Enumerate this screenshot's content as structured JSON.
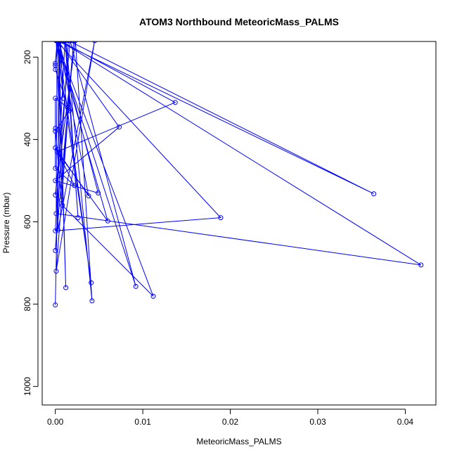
{
  "chart_data": {
    "type": "line",
    "title": "ATOM3 Northbound MeteoricMass_PALMS",
    "xlabel": "MeteoricMass_PALMS",
    "ylabel": "Pressure (mbar)",
    "xlim": [
      -0.0015,
      0.0435
    ],
    "ylim": [
      1045,
      162
    ],
    "y_reversed": true,
    "x_ticks": [
      0.0,
      0.01,
      0.02,
      0.03,
      0.04
    ],
    "x_tick_labels": [
      "0.00",
      "0.01",
      "0.02",
      "0.03",
      "0.04"
    ],
    "y_ticks": [
      200,
      400,
      600,
      800,
      1000
    ],
    "y_tick_labels": [
      "200",
      "400",
      "600",
      "800",
      "1000"
    ],
    "grid": false,
    "legend": "none",
    "series": [
      {
        "color": "#0000ff",
        "marker": "open-circle",
        "x": [
          0.0,
          0.0006,
          0.0009,
          0.0003,
          0.0012,
          0.0004,
          0.0003,
          0.0045,
          0.0001,
          0.0021,
          0.0,
          0.0015,
          0.0364,
          0.0002,
          0.0001,
          0.0418,
          0.0005,
          0.0137,
          0.0002,
          0.006,
          0.0001,
          0.0189,
          0.0,
          0.0011,
          0.0026,
          0.0012,
          0.0042,
          0.0023,
          0.0,
          0.0017,
          0.0092,
          0.0001,
          0.0008,
          0.0112,
          0.0001,
          0.0041,
          0.0003,
          0.0073,
          0.0,
          0.0049,
          0.0004,
          0.0038,
          0.0,
          0.0022,
          0.0,
          0.0,
          0.0007,
          0.0014,
          0.0,
          0.0,
          0.0016,
          0.0,
          0.0,
          0.0002,
          0.0
        ],
        "y": [
          802,
          160,
          300,
          160,
          760,
          160,
          620,
          160,
          720,
          160,
          670,
          160,
          532,
          160,
          580,
          705,
          160,
          310,
          430,
          598,
          160,
          590,
          622,
          160,
          590,
          160,
          792,
          160,
          535,
          160,
          757,
          160,
          560,
          781,
          160,
          748,
          160,
          370,
          500,
          530,
          160,
          537,
          420,
          512,
          470,
          373,
          547,
          322,
          300,
          380,
          330,
          230,
          215,
          160,
          220
        ]
      }
    ]
  }
}
